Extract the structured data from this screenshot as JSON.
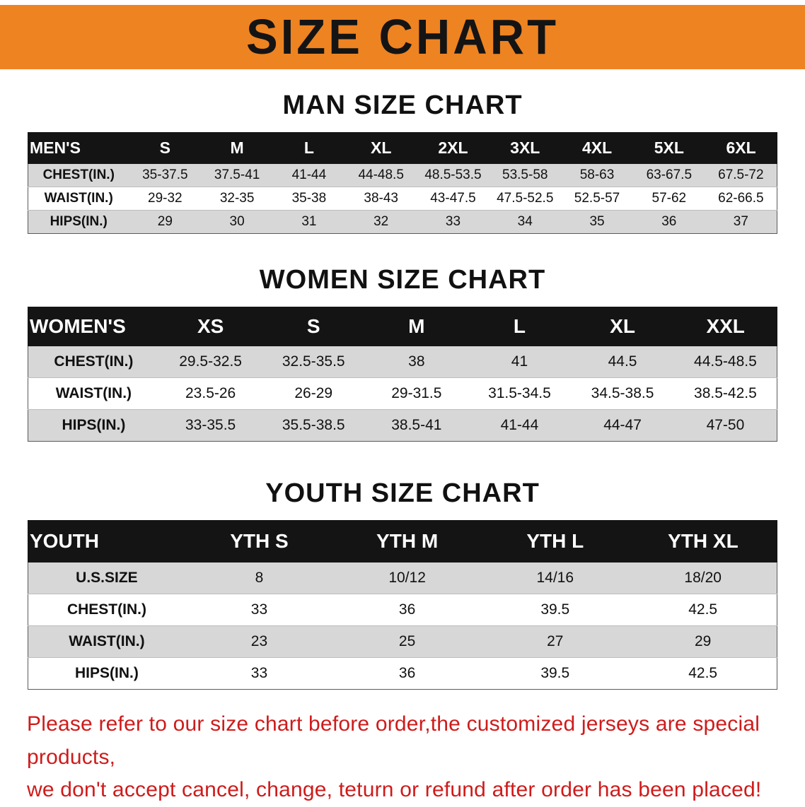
{
  "banner": {
    "title": "SIZE CHART"
  },
  "sections": [
    {
      "title": "MAN SIZE CHART",
      "table": {
        "header": [
          "MEN'S",
          "S",
          "M",
          "L",
          "XL",
          "2XL",
          "3XL",
          "4XL",
          "5XL",
          "6XL"
        ],
        "rows": [
          {
            "label": "CHEST(IN.)",
            "values": [
              "35-37.5",
              "37.5-41",
              "41-44",
              "44-48.5",
              "48.5-53.5",
              "53.5-58",
              "58-63",
              "63-67.5",
              "67.5-72"
            ]
          },
          {
            "label": "WAIST(IN.)",
            "values": [
              "29-32",
              "32-35",
              "35-38",
              "38-43",
              "43-47.5",
              "47.5-52.5",
              "52.5-57",
              "57-62",
              "62-66.5"
            ]
          },
          {
            "label": "HIPS(IN.)",
            "values": [
              "29",
              "30",
              "31",
              "32",
              "33",
              "34",
              "35",
              "36",
              "37"
            ]
          }
        ]
      }
    },
    {
      "title": "WOMEN SIZE CHART",
      "table": {
        "header": [
          "WOMEN'S",
          "XS",
          "S",
          "M",
          "L",
          "XL",
          "XXL"
        ],
        "rows": [
          {
            "label": "CHEST(IN.)",
            "values": [
              "29.5-32.5",
              "32.5-35.5",
              "38",
              "41",
              "44.5",
              "44.5-48.5"
            ]
          },
          {
            "label": "WAIST(IN.)",
            "values": [
              "23.5-26",
              "26-29",
              "29-31.5",
              "31.5-34.5",
              "34.5-38.5",
              "38.5-42.5"
            ]
          },
          {
            "label": "HIPS(IN.)",
            "values": [
              "33-35.5",
              "35.5-38.5",
              "38.5-41",
              "41-44",
              "44-47",
              "47-50"
            ]
          }
        ]
      }
    },
    {
      "title": "YOUTH SIZE CHART",
      "table": {
        "header": [
          "YOUTH",
          "YTH S",
          "YTH M",
          "YTH L",
          "YTH XL"
        ],
        "rows": [
          {
            "label": "U.S.SIZE",
            "values": [
              "8",
              "10/12",
              "14/16",
              "18/20"
            ]
          },
          {
            "label": "CHEST(IN.)",
            "values": [
              "33",
              "36",
              "39.5",
              "42.5"
            ]
          },
          {
            "label": "WAIST(IN.)",
            "values": [
              "23",
              "25",
              "27",
              "29"
            ]
          },
          {
            "label": "HIPS(IN.)",
            "values": [
              "33",
              "36",
              "39.5",
              "42.5"
            ]
          }
        ]
      }
    }
  ],
  "footer": {
    "line1": "Please refer to our size chart before order,the customized jerseys are special products,",
    "line2": "we don't accept cancel, change, teturn or refund after order has been placed!"
  },
  "colors": {
    "accent_orange": "#ee8322",
    "header_black": "#141414",
    "row_gray": "#d7d7d7",
    "notice_red": "#cf1b1b"
  }
}
